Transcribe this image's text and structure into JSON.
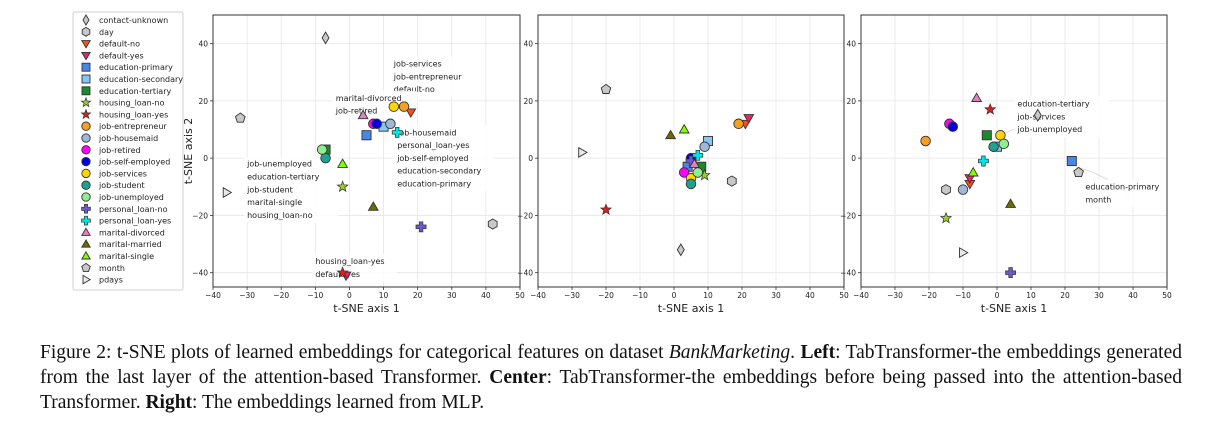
{
  "legend": [
    {
      "label": "contact-unknown",
      "marker": "diamond",
      "color": "#c8c8c8"
    },
    {
      "label": "day",
      "marker": "hexagon",
      "color": "#c8c8c8"
    },
    {
      "label": "default-no",
      "marker": "triangle-down",
      "color": "#ff4a1c"
    },
    {
      "label": "default-yes",
      "marker": "triangle-down",
      "color": "#ee2266"
    },
    {
      "label": "education-primary",
      "marker": "square",
      "color": "#4a86e8"
    },
    {
      "label": "education-secondary",
      "marker": "square",
      "color": "#87c7f4"
    },
    {
      "label": "education-tertiary",
      "marker": "square",
      "color": "#1a8a2a"
    },
    {
      "label": "housing_loan-no",
      "marker": "star",
      "color": "#9acd32"
    },
    {
      "label": "housing_loan-yes",
      "marker": "star",
      "color": "#d62020"
    },
    {
      "label": "job-entrepreneur",
      "marker": "circle",
      "color": "#f5a020"
    },
    {
      "label": "job-housemaid",
      "marker": "circle",
      "color": "#9fb8d8"
    },
    {
      "label": "job-retired",
      "marker": "circle",
      "color": "#ff00ff"
    },
    {
      "label": "job-self-employed",
      "marker": "circle",
      "color": "#0000dd"
    },
    {
      "label": "job-services",
      "marker": "circle",
      "color": "#ffd700"
    },
    {
      "label": "job-student",
      "marker": "circle",
      "color": "#20a090"
    },
    {
      "label": "job-unemployed",
      "marker": "circle",
      "color": "#90ee90"
    },
    {
      "label": "personal_loan-no",
      "marker": "plus",
      "color": "#6a5acd"
    },
    {
      "label": "personal_loan-yes",
      "marker": "plus",
      "color": "#00e5e5"
    },
    {
      "label": "marital-divorced",
      "marker": "triangle-up",
      "color": "#e080c0"
    },
    {
      "label": "marital-married",
      "marker": "triangle-up",
      "color": "#6b6b00"
    },
    {
      "label": "marital-single",
      "marker": "triangle-up",
      "color": "#80ff00"
    },
    {
      "label": "month",
      "marker": "pentagon",
      "color": "#c8c8c8"
    },
    {
      "label": "pdays",
      "marker": "triangle-right",
      "color": "#e8e8e8"
    }
  ],
  "chart_data": [
    {
      "type": "scatter",
      "xlabel": "t-SNE axis 1",
      "ylabel": "t-SNE axis 2",
      "xlim": [
        -40,
        50
      ],
      "ylim": [
        -45,
        50
      ],
      "xticks": [
        -40,
        -30,
        -20,
        -10,
        0,
        10,
        20,
        30,
        40,
        50
      ],
      "yticks": [
        -40,
        -20,
        0,
        20,
        40
      ],
      "grid": true,
      "points": [
        {
          "cat": "contact-unknown",
          "x": -7,
          "y": 42
        },
        {
          "cat": "day",
          "x": 42,
          "y": -23
        },
        {
          "cat": "default-no",
          "x": 18,
          "y": 16
        },
        {
          "cat": "default-yes",
          "x": -1,
          "y": -41
        },
        {
          "cat": "education-primary",
          "x": 5,
          "y": 8
        },
        {
          "cat": "education-secondary",
          "x": 10,
          "y": 11
        },
        {
          "cat": "education-tertiary",
          "x": -7,
          "y": 3
        },
        {
          "cat": "housing_loan-no",
          "x": -2,
          "y": -10
        },
        {
          "cat": "housing_loan-yes",
          "x": -2,
          "y": -40
        },
        {
          "cat": "job-entrepreneur",
          "x": 16,
          "y": 18
        },
        {
          "cat": "job-housemaid",
          "x": 12,
          "y": 12
        },
        {
          "cat": "job-retired",
          "x": 7,
          "y": 12
        },
        {
          "cat": "job-self-employed",
          "x": 8,
          "y": 12
        },
        {
          "cat": "job-services",
          "x": 13,
          "y": 18
        },
        {
          "cat": "job-student",
          "x": -7,
          "y": 0
        },
        {
          "cat": "job-unemployed",
          "x": -8,
          "y": 3
        },
        {
          "cat": "personal_loan-no",
          "x": 21,
          "y": -24
        },
        {
          "cat": "personal_loan-yes",
          "x": 14,
          "y": 9
        },
        {
          "cat": "marital-divorced",
          "x": 4,
          "y": 15
        },
        {
          "cat": "marital-married",
          "x": 7,
          "y": -17
        },
        {
          "cat": "marital-single",
          "x": -2,
          "y": -2
        },
        {
          "cat": "month",
          "x": -32,
          "y": 14
        },
        {
          "cat": "pdays",
          "x": -36,
          "y": -12
        }
      ],
      "annotations": [
        {
          "lines": [
            "job-services",
            "job-entrepreneur",
            "default-no"
          ],
          "x": 13,
          "y": 32,
          "tx": 15,
          "ty": 18
        },
        {
          "lines": [
            "marital-divorced",
            "job-retired"
          ],
          "x": -4,
          "y": 20,
          "tx": 6,
          "ty": 14
        },
        {
          "lines": [
            "job-housemaid",
            "personal_loan-yes",
            "job-self-employed",
            "education-secondary",
            "education-primary"
          ],
          "x": 14,
          "y": 8,
          "tx": 11,
          "ty": 11
        },
        {
          "lines": [
            "job-unemployed",
            "education-tertiary",
            "job-student",
            "marital-single",
            "housing_loan-no"
          ],
          "x": -30,
          "y": -3,
          "tx": -7,
          "ty": 1
        },
        {
          "lines": [
            "housing_loan-yes",
            "default-yes"
          ],
          "x": -10,
          "y": -37,
          "tx": -2,
          "ty": -40
        }
      ]
    },
    {
      "type": "scatter",
      "xlabel": "t-SNE axis 1",
      "ylabel": "",
      "xlim": [
        -40,
        50
      ],
      "ylim": [
        -45,
        50
      ],
      "xticks": [
        -40,
        -30,
        -20,
        -10,
        0,
        10,
        20,
        30,
        40,
        50
      ],
      "yticks": [
        -40,
        -20,
        0,
        20,
        40
      ],
      "grid": true,
      "points": [
        {
          "cat": "contact-unknown",
          "x": 2,
          "y": -32
        },
        {
          "cat": "day",
          "x": 17,
          "y": -8
        },
        {
          "cat": "default-no",
          "x": 21,
          "y": 12
        },
        {
          "cat": "default-yes",
          "x": 22,
          "y": 14
        },
        {
          "cat": "education-primary",
          "x": 4,
          "y": -3
        },
        {
          "cat": "education-secondary",
          "x": 10,
          "y": 6
        },
        {
          "cat": "education-tertiary",
          "x": 8,
          "y": -3
        },
        {
          "cat": "housing_loan-no",
          "x": 9,
          "y": -6
        },
        {
          "cat": "housing_loan-yes",
          "x": -20,
          "y": -18
        },
        {
          "cat": "job-entrepreneur",
          "x": 19,
          "y": 12
        },
        {
          "cat": "job-housemaid",
          "x": 9,
          "y": 4
        },
        {
          "cat": "job-retired",
          "x": 3,
          "y": -5
        },
        {
          "cat": "job-self-employed",
          "x": 5,
          "y": 0
        },
        {
          "cat": "job-services",
          "x": 5,
          "y": -7
        },
        {
          "cat": "job-student",
          "x": 5,
          "y": -9
        },
        {
          "cat": "job-unemployed",
          "x": 7,
          "y": -5
        },
        {
          "cat": "personal_loan-no",
          "x": 5,
          "y": -1
        },
        {
          "cat": "personal_loan-yes",
          "x": 7,
          "y": 1
        },
        {
          "cat": "marital-divorced",
          "x": 6,
          "y": -2
        },
        {
          "cat": "marital-married",
          "x": -1,
          "y": 8
        },
        {
          "cat": "marital-single",
          "x": 3,
          "y": 10
        },
        {
          "cat": "month",
          "x": -20,
          "y": 24
        },
        {
          "cat": "pdays",
          "x": -27,
          "y": 2
        }
      ],
      "annotations": []
    },
    {
      "type": "scatter",
      "xlabel": "t-SNE axis 1",
      "ylabel": "",
      "xlim": [
        -40,
        50
      ],
      "ylim": [
        -45,
        50
      ],
      "xticks": [
        -40,
        -30,
        -20,
        -10,
        0,
        10,
        20,
        30,
        40,
        50
      ],
      "yticks": [
        -40,
        -20,
        0,
        20,
        40
      ],
      "grid": true,
      "points": [
        {
          "cat": "contact-unknown",
          "x": 12,
          "y": 15
        },
        {
          "cat": "day",
          "x": -15,
          "y": -11
        },
        {
          "cat": "default-no",
          "x": -8,
          "y": -9
        },
        {
          "cat": "default-yes",
          "x": -8,
          "y": -7
        },
        {
          "cat": "education-primary",
          "x": 22,
          "y": -1
        },
        {
          "cat": "education-secondary",
          "x": 0,
          "y": 4
        },
        {
          "cat": "education-tertiary",
          "x": -3,
          "y": 8
        },
        {
          "cat": "housing_loan-no",
          "x": -15,
          "y": -21
        },
        {
          "cat": "housing_loan-yes",
          "x": -2,
          "y": 17
        },
        {
          "cat": "job-entrepreneur",
          "x": -21,
          "y": 6
        },
        {
          "cat": "job-housemaid",
          "x": -10,
          "y": -11
        },
        {
          "cat": "job-retired",
          "x": -14,
          "y": 12
        },
        {
          "cat": "job-self-employed",
          "x": -13,
          "y": 11
        },
        {
          "cat": "job-services",
          "x": 1,
          "y": 8
        },
        {
          "cat": "job-student",
          "x": -1,
          "y": 4
        },
        {
          "cat": "job-unemployed",
          "x": 2,
          "y": 5
        },
        {
          "cat": "personal_loan-no",
          "x": 4,
          "y": -40
        },
        {
          "cat": "personal_loan-yes",
          "x": -4,
          "y": -1
        },
        {
          "cat": "marital-divorced",
          "x": -6,
          "y": 21
        },
        {
          "cat": "marital-married",
          "x": 4,
          "y": -16
        },
        {
          "cat": "marital-single",
          "x": -7,
          "y": -5
        },
        {
          "cat": "month",
          "x": 24,
          "y": -5
        },
        {
          "cat": "pdays",
          "x": -10,
          "y": -33
        }
      ],
      "annotations": [
        {
          "lines": [
            "education-tertiary",
            "job-services",
            "job-unemployed"
          ],
          "x": 6,
          "y": 18,
          "tx": 1,
          "ty": 8
        },
        {
          "lines": [
            "education-primary",
            "month"
          ],
          "x": 26,
          "y": -11,
          "tx": 23,
          "ty": -3
        }
      ]
    }
  ],
  "caption": {
    "fig_label": "Figure 2:",
    "text1": " t-SNE plots of learned embeddings for categorical features on dataset ",
    "dataset": "BankMarketing",
    "text2": ". ",
    "left_label": "Left",
    "left_text": ": TabTransformer-the embeddings generated from the last layer of the attention-based Transformer. ",
    "center_label": "Center",
    "center_text": ": TabTransformer-the embeddings before being passed into the attention-based Transformer. ",
    "right_label": "Right",
    "right_text": ": The embeddings learned from MLP."
  }
}
